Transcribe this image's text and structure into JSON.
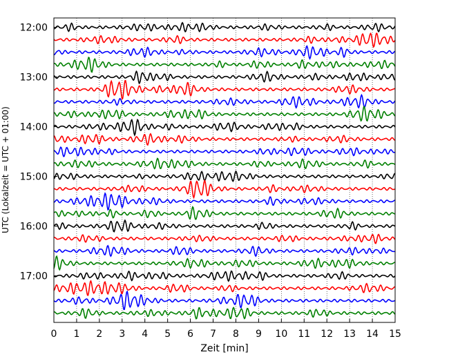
{
  "chart_data": {
    "type": "line",
    "title": "",
    "xlabel": "Zeit  [min]",
    "ylabel": "UTC (Lokalzeit = UTC + 01:00)",
    "xlim": [
      0,
      15
    ],
    "x_ticks": [
      0,
      1,
      2,
      3,
      4,
      5,
      6,
      7,
      8,
      9,
      10,
      11,
      12,
      13,
      14,
      15
    ],
    "y_tick_labels": [
      "12:00",
      "13:00",
      "14:00",
      "15:00",
      "16:00",
      "17:00"
    ],
    "grid": "vertical dotted",
    "trace_interval_minutes": 15,
    "trace_count": 24,
    "first_trace_start": "12:00",
    "last_trace_start": "17:45",
    "trace_colors": [
      "#000000",
      "#ff0000",
      "#0000ff",
      "#008000"
    ]
  }
}
